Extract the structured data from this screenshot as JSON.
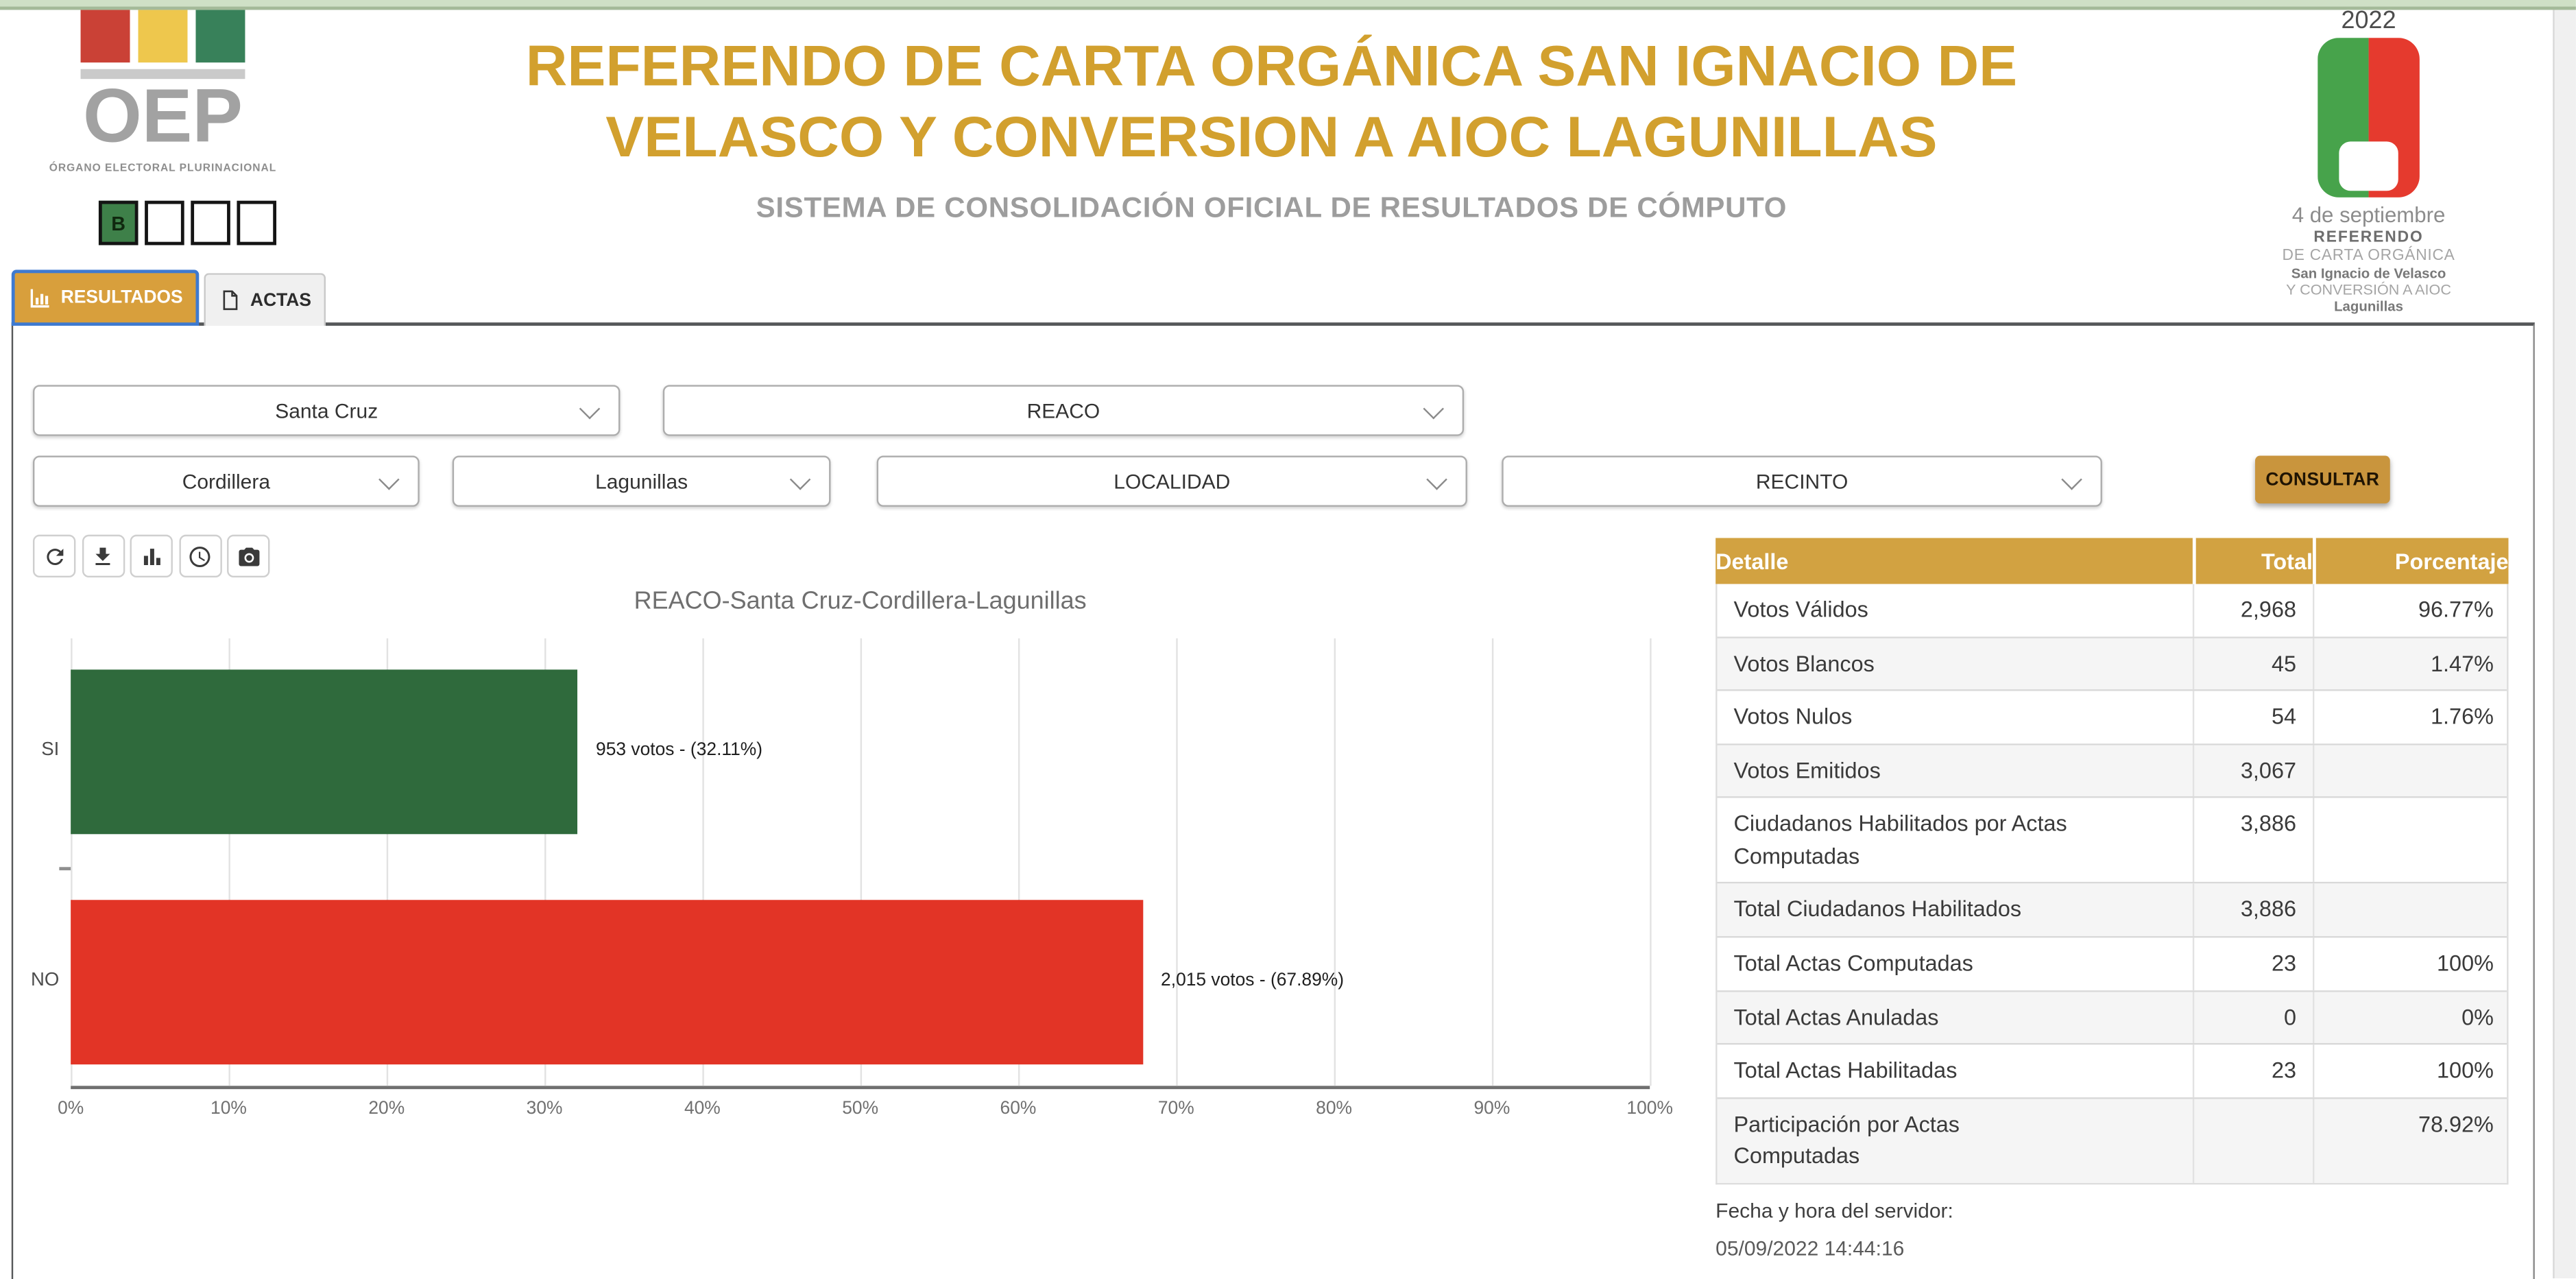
{
  "brand": {
    "name": "OEP",
    "caption": "ÓRGANO ELECTORAL PLURINACIONAL",
    "ballot_letter": "B",
    "square_colors": {
      "red": "#ca4136",
      "yellow": "#eec74d",
      "green": "#38815a"
    }
  },
  "header": {
    "title": "REFERENDO DE CARTA ORGÁNICA SAN IGNACIO DE VELASCO Y CONVERSION A AIOC LAGUNILLAS",
    "subtitle": "SISTEMA DE CONSOLIDACIÓN OFICIAL DE RESULTADOS DE CÓMPUTO"
  },
  "event_logo": {
    "year": "2022",
    "date": "4 de septiembre",
    "lines": [
      "REFERENDO",
      "DE CARTA ORGÁNICA",
      "San Ignacio de Velasco",
      "Y CONVERSIÓN A AIOC",
      "Lagunillas"
    ]
  },
  "tabs": [
    {
      "id": "resultados",
      "label": "RESULTADOS",
      "icon": "bar-chart-icon",
      "active": true
    },
    {
      "id": "actas",
      "label": "ACTAS",
      "icon": "document-icon",
      "active": false
    }
  ],
  "filters": {
    "selects": [
      {
        "name": "departamento",
        "value": "Santa Cruz"
      },
      {
        "name": "proceso",
        "value": "REACO"
      },
      {
        "name": "provincia",
        "value": "Cordillera"
      },
      {
        "name": "municipio",
        "value": "Lagunillas"
      },
      {
        "name": "localidad",
        "value": "LOCALIDAD"
      },
      {
        "name": "recinto",
        "value": "RECINTO"
      }
    ],
    "submit_label": "CONSULTAR"
  },
  "chart_toolbar": {
    "icons": [
      "refresh",
      "download",
      "bar-chart",
      "clock",
      "camera"
    ]
  },
  "chart_data": {
    "type": "bar",
    "orientation": "horizontal",
    "title": "REACO-Santa Cruz-Cordillera-Lagunillas",
    "categories": [
      "SI",
      "NO"
    ],
    "series": [
      {
        "name": "votos",
        "values": [
          953,
          2015
        ]
      }
    ],
    "percentages": [
      32.11,
      67.89
    ],
    "bar_labels": [
      "953 votos - (32.11%)",
      "2,015 votos - (67.89%)"
    ],
    "bar_colors": [
      "#2f6a3c",
      "#e23426"
    ],
    "xlim": [
      0,
      100
    ],
    "x_tick_labels": [
      "0%",
      "10%",
      "20%",
      "30%",
      "40%",
      "50%",
      "60%",
      "70%",
      "80%",
      "90%",
      "100%"
    ],
    "grid": "vertical",
    "legend": false
  },
  "results_table": {
    "headers": [
      "Detalle",
      "Total",
      "Porcentaje"
    ],
    "rows": [
      {
        "detalle": "Votos Válidos",
        "total": "2,968",
        "porcentaje": "96.77%"
      },
      {
        "detalle": "Votos Blancos",
        "total": "45",
        "porcentaje": "1.47%"
      },
      {
        "detalle": "Votos Nulos",
        "total": "54",
        "porcentaje": "1.76%"
      },
      {
        "detalle": "Votos Emitidos",
        "total": "3,067",
        "porcentaje": ""
      },
      {
        "detalle": "Ciudadanos Habilitados por Actas Computadas",
        "total": "3,886",
        "porcentaje": ""
      },
      {
        "detalle": "Total Ciudadanos Habilitados",
        "total": "3,886",
        "porcentaje": ""
      },
      {
        "detalle": "Total Actas Computadas",
        "total": "23",
        "porcentaje": "100%"
      },
      {
        "detalle": "Total Actas Anuladas",
        "total": "0",
        "porcentaje": "0%"
      },
      {
        "detalle": "Total Actas Habilitadas",
        "total": "23",
        "porcentaje": "100%"
      },
      {
        "detalle": "Participación por Actas Computadas",
        "total": "",
        "porcentaje": "78.92%"
      }
    ]
  },
  "server_info": {
    "label": "Fecha y hora del servidor:",
    "value": "05/09/2022 14:44:16"
  },
  "colors": {
    "accent_gold": "#d2a02e",
    "table_header_gold": "#d2a241",
    "si_green": "#2f6a3c",
    "no_red": "#e23426",
    "topbar_green": "#cfe0c6"
  }
}
